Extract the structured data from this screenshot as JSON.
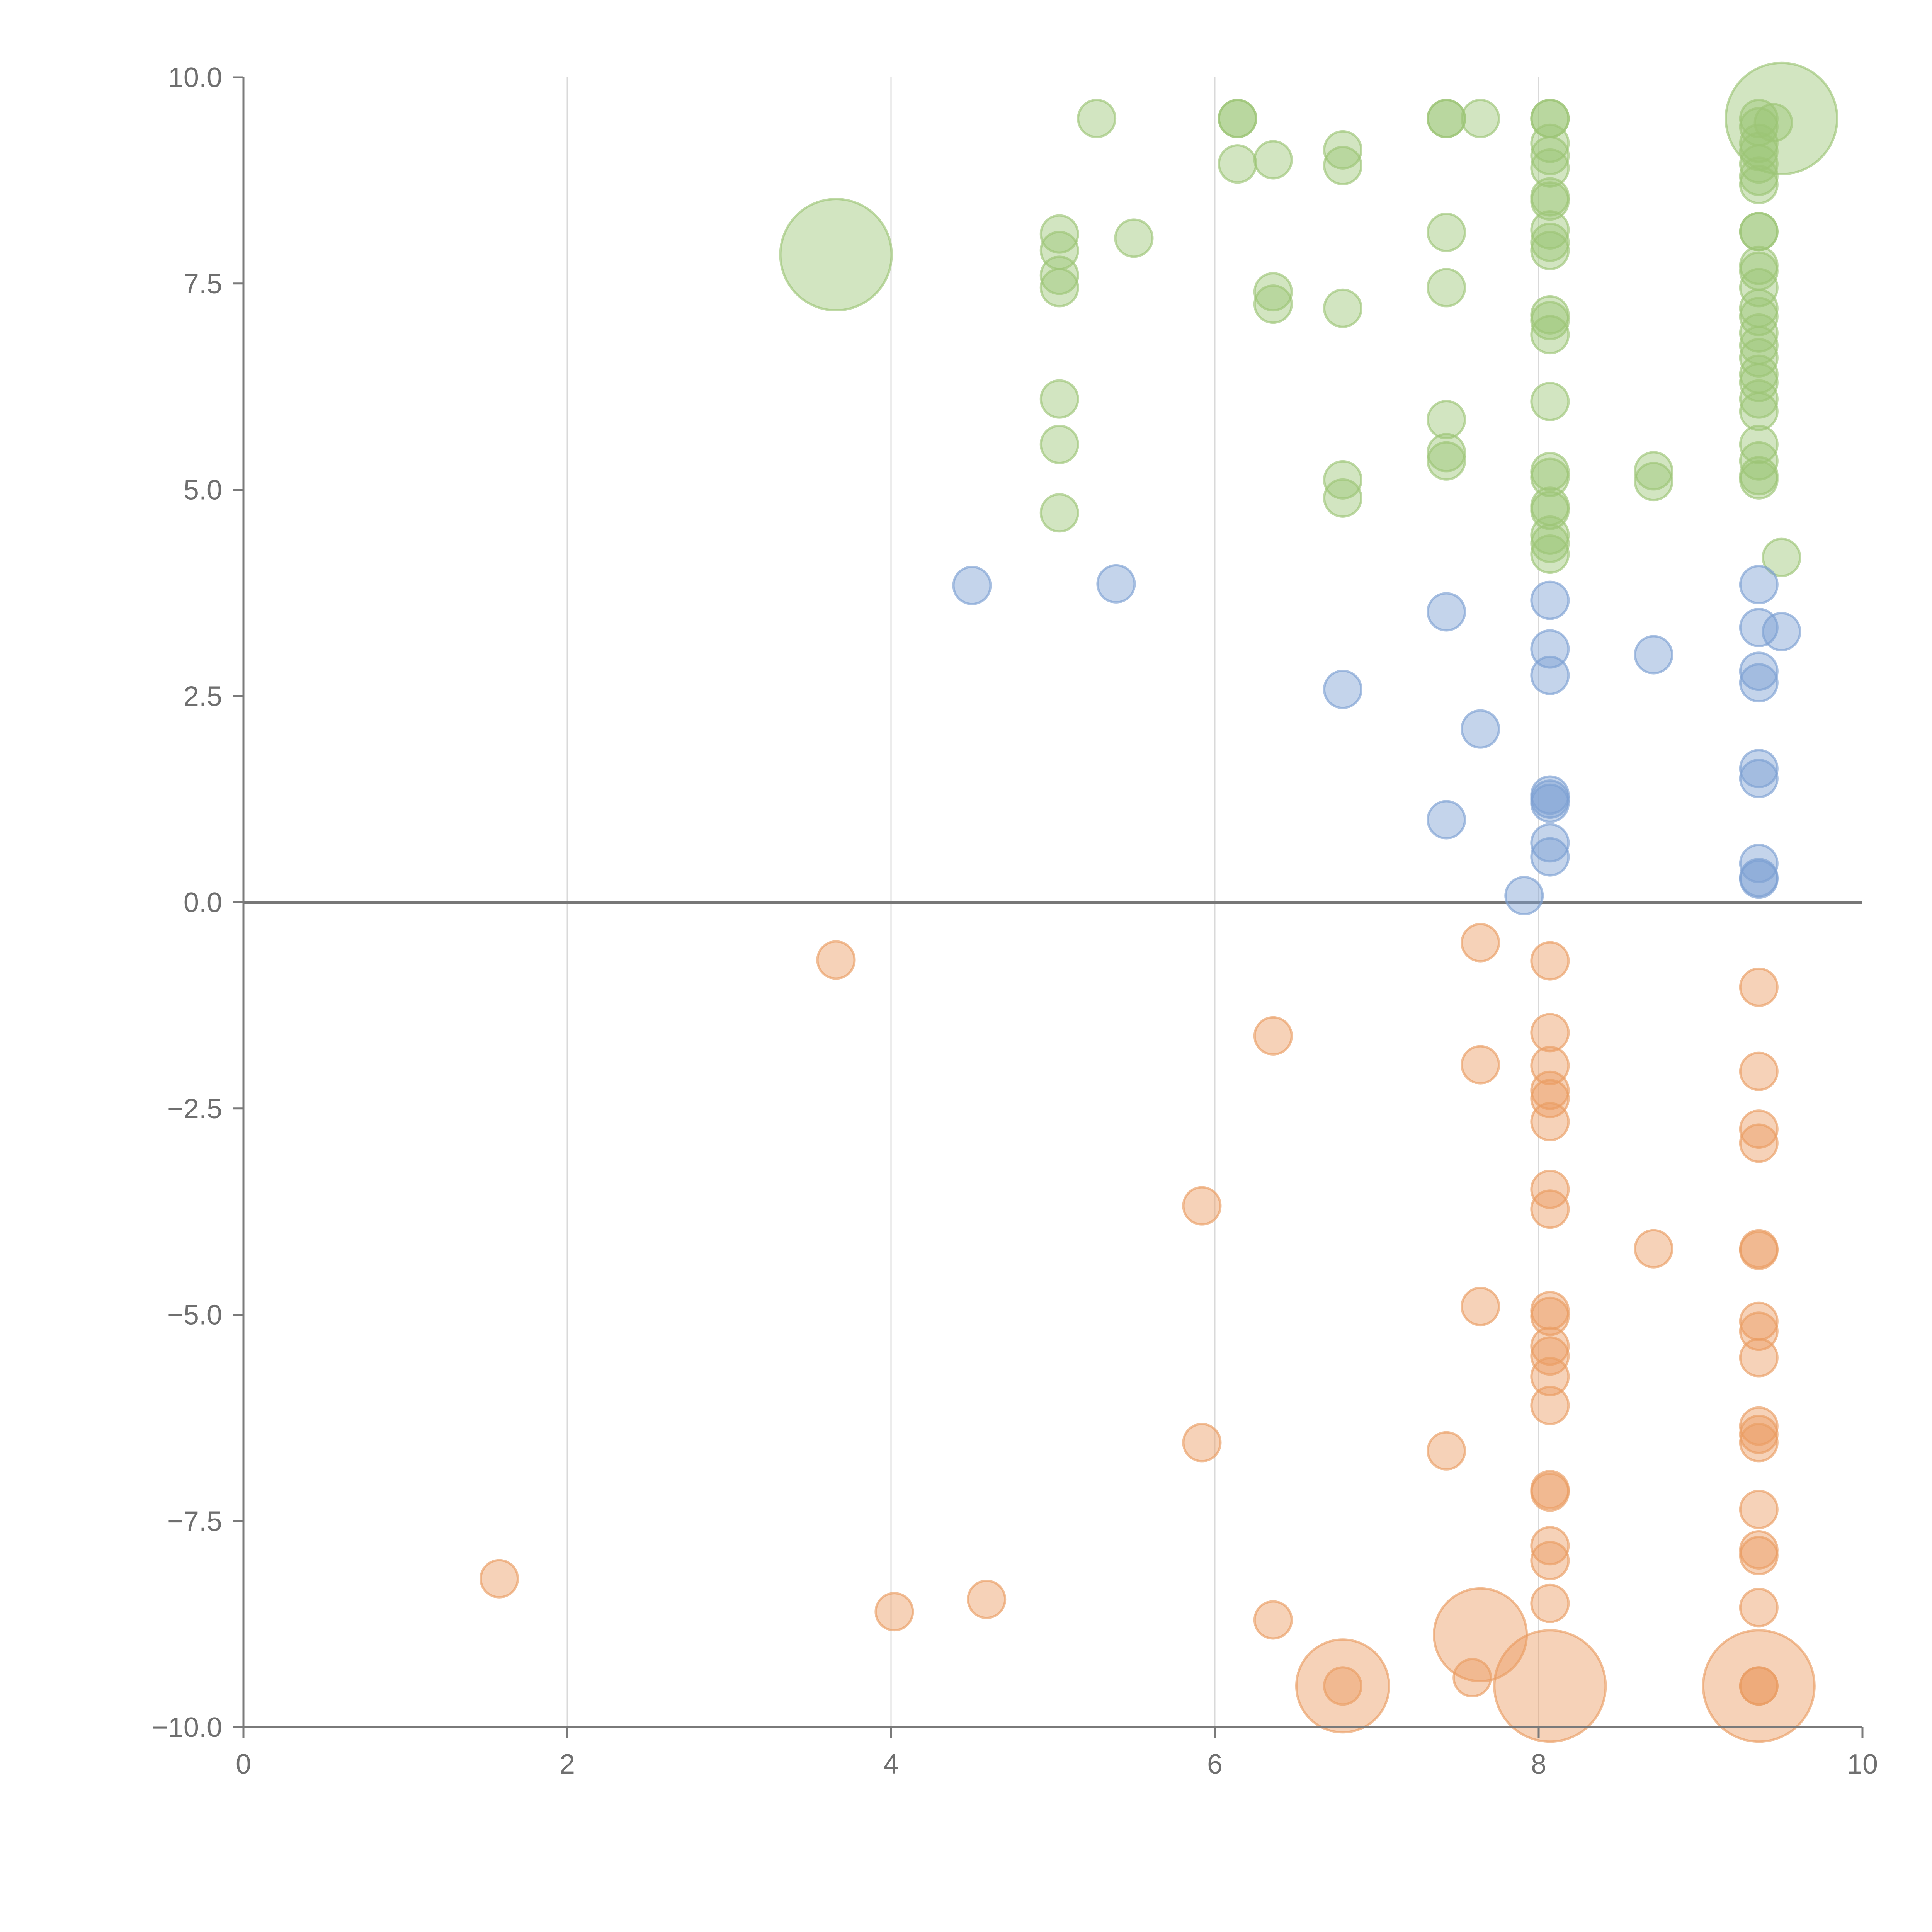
{
  "chart_data": {
    "type": "scatter",
    "title": "",
    "xlabel": "",
    "ylabel": "",
    "xlim": [
      0,
      10
    ],
    "ylim": [
      -10,
      10
    ],
    "grid": "vertical",
    "legend": "none",
    "x_ticks": [
      "0",
      "2",
      "4",
      "6",
      "8",
      "10"
    ],
    "y_ticks": [
      "10.0",
      "7.5",
      "5.0",
      "2.5",
      "0.0",
      "−2.5",
      "−5.0",
      "−7.5",
      "−10.0"
    ],
    "colors": {
      "green": "#9cc576",
      "blue": "#7da0d2",
      "orange": "#ea9c62"
    },
    "series": [
      {
        "color": "green",
        "points": [
          [
            9.5,
            9.5,
            3
          ],
          [
            3.66,
            7.85,
            3
          ],
          [
            5.27,
            9.5,
            1
          ],
          [
            6.14,
            9.5,
            1
          ],
          [
            6.14,
            9.5,
            1
          ],
          [
            6.14,
            8.95,
            1
          ],
          [
            6.36,
            9.0,
            1
          ],
          [
            6.79,
            9.12,
            1
          ],
          [
            6.79,
            8.93,
            1
          ],
          [
            7.43,
            9.5,
            1
          ],
          [
            7.43,
            9.5,
            1
          ],
          [
            7.64,
            9.5,
            1
          ],
          [
            8.07,
            9.5,
            1
          ],
          [
            8.07,
            9.5,
            1
          ],
          [
            8.07,
            9.2,
            1
          ],
          [
            8.07,
            9.05,
            1
          ],
          [
            8.07,
            8.9,
            1
          ],
          [
            8.07,
            8.55,
            1
          ],
          [
            8.07,
            8.5,
            1
          ],
          [
            8.07,
            8.15,
            1
          ],
          [
            8.07,
            8.0,
            1
          ],
          [
            8.07,
            7.9,
            1
          ],
          [
            9.36,
            9.5,
            1
          ],
          [
            9.36,
            9.4,
            1
          ],
          [
            9.36,
            9.2,
            1
          ],
          [
            9.36,
            9.1,
            1
          ],
          [
            9.36,
            8.95,
            1
          ],
          [
            9.36,
            8.8,
            1
          ],
          [
            9.36,
            8.7,
            1
          ],
          [
            9.45,
            9.45,
            1
          ],
          [
            5.04,
            8.1,
            1
          ],
          [
            5.04,
            7.9,
            1
          ],
          [
            5.5,
            8.05,
            1
          ],
          [
            5.04,
            7.6,
            1
          ],
          [
            5.04,
            7.45,
            1
          ],
          [
            6.36,
            7.4,
            1
          ],
          [
            6.36,
            7.25,
            1
          ],
          [
            6.79,
            7.2,
            1
          ],
          [
            7.43,
            8.12,
            1
          ],
          [
            7.43,
            7.45,
            1
          ],
          [
            8.07,
            7.12,
            1
          ],
          [
            8.07,
            7.05,
            1
          ],
          [
            8.07,
            6.88,
            1
          ],
          [
            8.07,
            6.07,
            1
          ],
          [
            9.36,
            8.13,
            1
          ],
          [
            9.36,
            8.13,
            1
          ],
          [
            9.36,
            7.72,
            1
          ],
          [
            9.36,
            7.65,
            1
          ],
          [
            9.36,
            7.45,
            1
          ],
          [
            9.36,
            7.2,
            1
          ],
          [
            9.36,
            7.1,
            1
          ],
          [
            9.36,
            6.9,
            1
          ],
          [
            9.36,
            6.75,
            1
          ],
          [
            9.36,
            6.6,
            1
          ],
          [
            9.36,
            6.4,
            1
          ],
          [
            9.36,
            6.3,
            1
          ],
          [
            9.36,
            6.1,
            1
          ],
          [
            9.36,
            5.95,
            1
          ],
          [
            9.36,
            5.55,
            1
          ],
          [
            9.36,
            5.35,
            1
          ],
          [
            9.36,
            5.17,
            1
          ],
          [
            9.36,
            5.12,
            1
          ],
          [
            5.04,
            6.1,
            1
          ],
          [
            5.04,
            5.55,
            1
          ],
          [
            5.04,
            4.72,
            1
          ],
          [
            6.79,
            5.12,
            1
          ],
          [
            6.79,
            4.9,
            1
          ],
          [
            7.43,
            5.85,
            1
          ],
          [
            7.43,
            5.45,
            1
          ],
          [
            7.43,
            5.35,
            1
          ],
          [
            8.07,
            5.22,
            1
          ],
          [
            8.07,
            5.15,
            1
          ],
          [
            8.07,
            4.8,
            1
          ],
          [
            8.07,
            4.75,
            1
          ],
          [
            8.07,
            4.45,
            1
          ],
          [
            8.07,
            4.35,
            1
          ],
          [
            8.07,
            4.22,
            1
          ],
          [
            8.71,
            5.23,
            1
          ],
          [
            8.71,
            5.1,
            1
          ],
          [
            9.5,
            4.18,
            1
          ]
        ]
      },
      {
        "color": "blue",
        "points": [
          [
            4.5,
            3.84,
            1
          ],
          [
            5.39,
            3.86,
            1
          ],
          [
            6.79,
            2.58,
            1
          ],
          [
            7.43,
            3.52,
            1
          ],
          [
            7.64,
            2.1,
            1
          ],
          [
            7.43,
            1.0,
            1
          ],
          [
            7.91,
            0.08,
            1
          ],
          [
            8.07,
            3.66,
            1
          ],
          [
            8.07,
            3.07,
            1
          ],
          [
            8.07,
            2.75,
            1
          ],
          [
            8.07,
            1.3,
            1
          ],
          [
            8.07,
            1.25,
            1
          ],
          [
            8.07,
            1.2,
            1
          ],
          [
            8.07,
            0.72,
            1
          ],
          [
            8.07,
            0.55,
            1
          ],
          [
            8.71,
            3.0,
            1
          ],
          [
            9.36,
            3.85,
            1
          ],
          [
            9.36,
            3.33,
            1
          ],
          [
            9.5,
            3.28,
            1
          ],
          [
            9.36,
            2.8,
            1
          ],
          [
            9.36,
            2.66,
            1
          ],
          [
            9.36,
            1.62,
            1
          ],
          [
            9.36,
            1.5,
            1
          ],
          [
            9.36,
            0.47,
            1
          ],
          [
            9.36,
            0.3,
            1
          ],
          [
            9.36,
            0.28,
            1
          ]
        ]
      },
      {
        "color": "orange",
        "points": [
          [
            3.66,
            -0.7,
            1
          ],
          [
            6.36,
            -1.62,
            1
          ],
          [
            7.64,
            -0.49,
            1
          ],
          [
            7.64,
            -1.97,
            1
          ],
          [
            8.07,
            -0.71,
            1
          ],
          [
            8.07,
            -1.58,
            1
          ],
          [
            8.07,
            -1.98,
            1
          ],
          [
            8.07,
            -2.28,
            1
          ],
          [
            8.07,
            -2.38,
            1
          ],
          [
            8.07,
            -2.66,
            1
          ],
          [
            9.36,
            -1.03,
            1
          ],
          [
            9.36,
            -2.05,
            1
          ],
          [
            9.36,
            -2.75,
            1
          ],
          [
            9.36,
            -2.92,
            1
          ],
          [
            5.92,
            -3.68,
            1
          ],
          [
            7.64,
            -4.9,
            1
          ],
          [
            8.07,
            -3.48,
            1
          ],
          [
            8.07,
            -3.72,
            1
          ],
          [
            8.07,
            -4.95,
            1
          ],
          [
            8.07,
            -5.02,
            1
          ],
          [
            8.07,
            -5.38,
            1
          ],
          [
            8.07,
            -5.5,
            1
          ],
          [
            8.07,
            -5.75,
            1
          ],
          [
            8.07,
            -6.1,
            1
          ],
          [
            8.71,
            -4.2,
            1
          ],
          [
            9.36,
            -4.2,
            1
          ],
          [
            9.36,
            -4.22,
            1
          ],
          [
            9.36,
            -5.08,
            1
          ],
          [
            9.36,
            -5.2,
            1
          ],
          [
            9.36,
            -5.52,
            1
          ],
          [
            5.92,
            -6.55,
            1
          ],
          [
            7.43,
            -6.65,
            1
          ],
          [
            8.07,
            -7.12,
            1
          ],
          [
            8.07,
            -7.15,
            1
          ],
          [
            8.07,
            -7.8,
            1
          ],
          [
            8.07,
            -7.98,
            1
          ],
          [
            8.07,
            -8.5,
            1
          ],
          [
            9.36,
            -6.35,
            1
          ],
          [
            9.36,
            -6.45,
            1
          ],
          [
            9.36,
            -6.55,
            1
          ],
          [
            9.36,
            -7.36,
            1
          ],
          [
            9.36,
            -7.85,
            1
          ],
          [
            9.36,
            -7.92,
            1
          ],
          [
            9.36,
            -8.55,
            1
          ],
          [
            1.58,
            -8.2,
            1
          ],
          [
            4.02,
            -8.6,
            1
          ],
          [
            4.59,
            -8.45,
            1
          ],
          [
            6.36,
            -8.7,
            1
          ],
          [
            7.59,
            -9.4,
            1
          ],
          [
            6.79,
            -9.5,
            1
          ],
          [
            9.36,
            -9.5,
            1
          ],
          [
            9.36,
            -9.5,
            1
          ],
          [
            7.64,
            -8.88,
            2.5
          ],
          [
            6.79,
            -9.5,
            2.5
          ],
          [
            8.07,
            -9.5,
            3
          ],
          [
            9.36,
            -9.5,
            3
          ]
        ]
      }
    ]
  }
}
